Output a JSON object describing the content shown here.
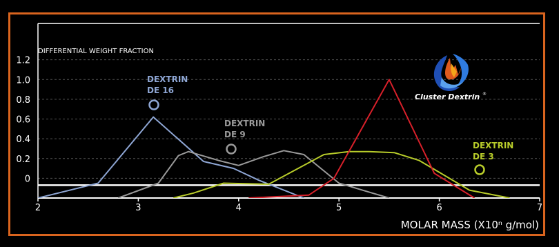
{
  "chart_data": {
    "type": "line",
    "title": "",
    "ylabel": "DIFFERENTIAL WEIGHT FRACTION",
    "xlabel": "MOLAR MASS (X10ⁿ g/mol)",
    "xlim": [
      2,
      7
    ],
    "ylim": [
      -0.2,
      1.4
    ],
    "x_ticks": [
      "2",
      "3",
      "4",
      "5",
      "6",
      "7"
    ],
    "y_ticks": [
      "0",
      "0.2",
      "0.4",
      "0.6",
      "0.8",
      "1.0",
      "1.2"
    ],
    "grid": true,
    "baseline_y": -0.07,
    "series": [
      {
        "name": "DEXTRIN DE 16",
        "color": "#8ea6d4",
        "x": [
          2.0,
          2.6,
          3.15,
          3.65,
          3.95,
          4.2,
          4.65
        ],
        "y": [
          -0.2,
          -0.05,
          0.62,
          0.17,
          0.1,
          -0.02,
          -0.2
        ]
      },
      {
        "name": "DEXTRIN DE 9",
        "color": "#9a9a9a",
        "x": [
          2.8,
          3.2,
          3.4,
          3.5,
          3.8,
          4.0,
          4.25,
          4.45,
          4.65,
          5.0,
          5.3,
          5.5
        ],
        "y": [
          -0.2,
          -0.05,
          0.23,
          0.27,
          0.18,
          0.13,
          0.22,
          0.28,
          0.24,
          -0.05,
          -0.14,
          -0.2
        ]
      },
      {
        "name": "DEXTRIN DE 3",
        "color": "#b8cc2a",
        "x": [
          3.35,
          3.55,
          3.85,
          4.3,
          4.85,
          5.1,
          5.3,
          5.55,
          5.8,
          6.05,
          6.3,
          6.7
        ],
        "y": [
          -0.2,
          -0.15,
          -0.05,
          -0.06,
          0.24,
          0.27,
          0.27,
          0.26,
          0.18,
          0.03,
          -0.12,
          -0.2
        ]
      },
      {
        "name": "Cluster Dextrin",
        "color": "#d8202a",
        "x": [
          4.1,
          4.7,
          4.95,
          5.5,
          5.95,
          6.35
        ],
        "y": [
          -0.2,
          -0.17,
          0.0,
          1.0,
          0.05,
          -0.2
        ]
      }
    ]
  },
  "annotations": [
    {
      "label_line1": "DEXTRIN",
      "label_line2": "DE 16",
      "color": "#8ea6d4"
    },
    {
      "label_line1": "DEXTRIN",
      "label_line2": "DE 9",
      "color": "#9a9a9a"
    },
    {
      "label_line1": "DEXTRIN",
      "label_line2": "DE 3",
      "color": "#b8cc2a"
    }
  ],
  "logo": {
    "text": "Cluster Dextrin",
    "mark": "®"
  }
}
